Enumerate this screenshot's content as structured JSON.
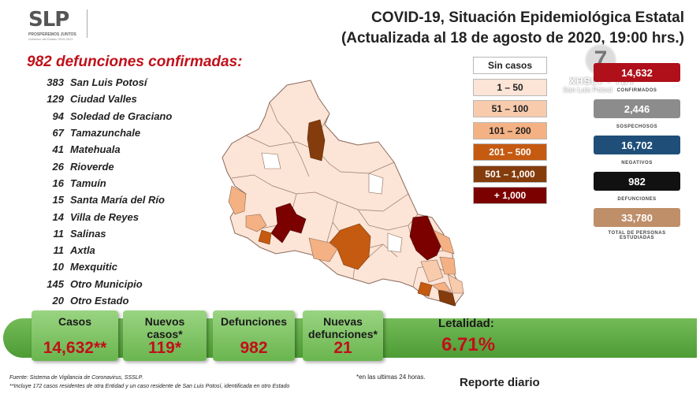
{
  "header": {
    "logo_text": "SLP",
    "logo_subtitle": "PROSPEREMOS JUNTOS",
    "logo_subtitle2": "Gobierno del Estado 2015-2021",
    "title_line1": "COVID-19, Situación Epidemiológica Estatal",
    "title_line2": "(Actualizada al 18 de agosto de 2020, 19:00 hrs.)"
  },
  "deaths_title": "982 defunciones confirmadas:",
  "municipalities": [
    {
      "count": "383",
      "name": "San Luis Potosí"
    },
    {
      "count": "129",
      "name": "Ciudad Valles"
    },
    {
      "count": "94",
      "name": "Soledad de Graciano"
    },
    {
      "count": "67",
      "name": "Tamazunchale"
    },
    {
      "count": "41",
      "name": "Matehuala"
    },
    {
      "count": "26",
      "name": "Rioverde"
    },
    {
      "count": "16",
      "name": "Tamuín"
    },
    {
      "count": "15",
      "name": "Santa María del Río"
    },
    {
      "count": "14",
      "name": "Villa de Reyes"
    },
    {
      "count": "11",
      "name": "Salinas"
    },
    {
      "count": "11",
      "name": "Axtla"
    },
    {
      "count": "10",
      "name": "Mexquitic"
    },
    {
      "count": "145",
      "name": "Otro Municipio"
    },
    {
      "count": "20",
      "name": "Otro Estado"
    }
  ],
  "legend": [
    {
      "label": "Sin casos",
      "color": "#ffffff",
      "text_color": "#222222"
    },
    {
      "label": "1 – 50",
      "color": "#fce4d6",
      "text_color": "#222222"
    },
    {
      "label": "51 – 100",
      "color": "#f8cbad",
      "text_color": "#222222"
    },
    {
      "label": "101 – 200",
      "color": "#f4b183",
      "text_color": "#222222"
    },
    {
      "label": "201 – 500",
      "color": "#c55a11",
      "text_color": "#ffffff"
    },
    {
      "label": "501 – 1,000",
      "color": "#843c0c",
      "text_color": "#ffffff"
    },
    {
      "label": "+ 1,000",
      "color": "#7b0000",
      "text_color": "#ffffff"
    }
  ],
  "stats": [
    {
      "value": "14,632",
      "label": "CONFIRMADOS",
      "color": "#b0101a"
    },
    {
      "value": "2,446",
      "label": "SOSPECHOSOS",
      "color": "#8c8c8c"
    },
    {
      "value": "16,702",
      "label": "NEGATIVOS",
      "color": "#1f4e79"
    },
    {
      "value": "982",
      "label": "DEFUNCIONES",
      "color": "#111111"
    },
    {
      "value": "33,780",
      "label": "TOTAL DE PERSONAS ESTUDIADAS",
      "color": "#bf8f6a"
    }
  ],
  "channel": {
    "number": "7",
    "line1": "XHSLV - TDT",
    "line2": "San Luis Potosí"
  },
  "summary": {
    "casos_label": "Casos",
    "casos_value": "14,632**",
    "nuevos_label": "Nuevos casos*",
    "nuevos_value": "119*",
    "def_label": "Defunciones",
    "def_value": "982",
    "nuevas_def_label": "Nuevas defunciones*",
    "nuevas_def_value": "21",
    "letalidad_label": "Letalidad:",
    "letalidad_value": "6.71%"
  },
  "footer": {
    "source": "Fuente: Sistema de Vigilancia de Coronavirus, SSSLP.",
    "note2": "**Incluye 172 casos residentes de otra Entidad y un caso residente de San Luis Potosí, identificada en otro Estado",
    "note1": "*en las ultimas 24 horas.",
    "report": "Reporte diario"
  }
}
